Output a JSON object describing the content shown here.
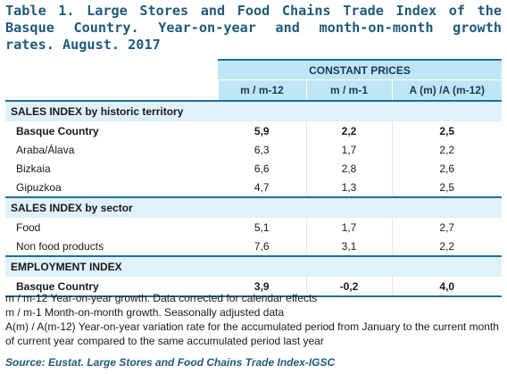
{
  "title": "Table 1. Large Stores and Food Chains Trade Index of the Basque Country. Year-on-year and month-on-month growth rates. August. 2017",
  "header": {
    "group": "CONSTANT PRICES",
    "columns": [
      "m / m-12",
      "m / m-1",
      "A (m) /A (m-12)"
    ]
  },
  "sections": [
    {
      "label": "SALES INDEX by historic territory",
      "rows": [
        {
          "label": "Basque Country",
          "bold": true,
          "values": [
            "5,9",
            "2,2",
            "2,5"
          ]
        },
        {
          "label": "Araba/Álava",
          "bold": false,
          "values": [
            "6,3",
            "1,7",
            "2,2"
          ]
        },
        {
          "label": "Bizkaia",
          "bold": false,
          "values": [
            "6,6",
            "2,8",
            "2,6"
          ]
        },
        {
          "label": "Gipuzkoa",
          "bold": false,
          "values": [
            "4,7",
            "1,3",
            "2,5"
          ]
        }
      ]
    },
    {
      "label": "SALES INDEX by sector",
      "rows": [
        {
          "label": "Food",
          "bold": false,
          "values": [
            "5,1",
            "1,7",
            "2,7"
          ]
        },
        {
          "label": "Non food products",
          "bold": false,
          "values": [
            "7,6",
            "3,1",
            "2,2"
          ]
        }
      ]
    },
    {
      "label": "EMPLOYMENT INDEX",
      "rows": [
        {
          "label": "Basque Country",
          "bold": true,
          "values": [
            "3,9",
            "-0,2",
            "4,0"
          ]
        }
      ]
    }
  ],
  "notes": [
    "m / m-12 Year-on-year growth. Data corrected for calendar effects",
    "m / m-1 Month-on-month growth. Seasonally adjusted data",
    "A(m) / A(m-12) Year-on-year variation rate for the accumulated period from January to the current month of current year compared to the same accumulated period last year"
  ],
  "source": "Source: Eustat. Large Stores and Food Chains Trade Index-IGSC",
  "colors": {
    "accent": "#1f6f9a",
    "header_bg": "#bfe6f5",
    "section_bg": "#dff1fa",
    "title": "#1f5b7c"
  }
}
